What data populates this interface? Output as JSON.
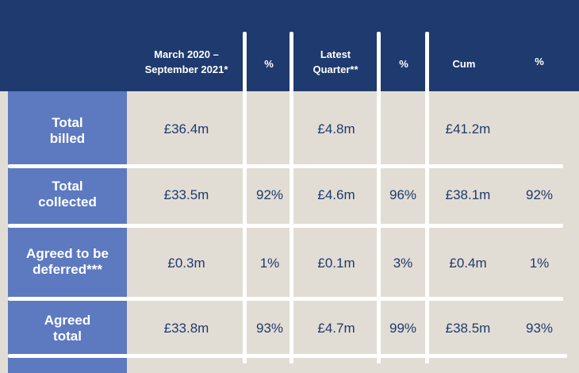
{
  "table": {
    "headers": [
      "",
      "March 2020 –\nSeptember 2021*",
      "%",
      "Latest\nQuarter**",
      "%",
      "Cum",
      "%"
    ],
    "rows": [
      {
        "label": "Total\nbilled",
        "cells": [
          "£36.4m",
          "",
          "£4.8m",
          "",
          "£41.2m",
          ""
        ]
      },
      {
        "label": "Total\ncollected",
        "cells": [
          "£33.5m",
          "92%",
          "£4.6m",
          "96%",
          "£38.1m",
          "92%"
        ]
      },
      {
        "label": "Agreed to be\ndeferred***",
        "cells": [
          "£0.3m",
          "1%",
          "£0.1m",
          "3%",
          "£0.4m",
          "1%"
        ]
      },
      {
        "label": "Agreed\ntotal",
        "cells": [
          "£33.8m",
          "93%",
          "£4.7m",
          "99%",
          "£38.5m",
          "93%"
        ]
      }
    ]
  },
  "colors": {
    "header_bg": "#1e3a6e",
    "row_label_bg": "#5d79c0",
    "body_bg": "#e2ddd4",
    "value_text": "#1e3a6e"
  }
}
